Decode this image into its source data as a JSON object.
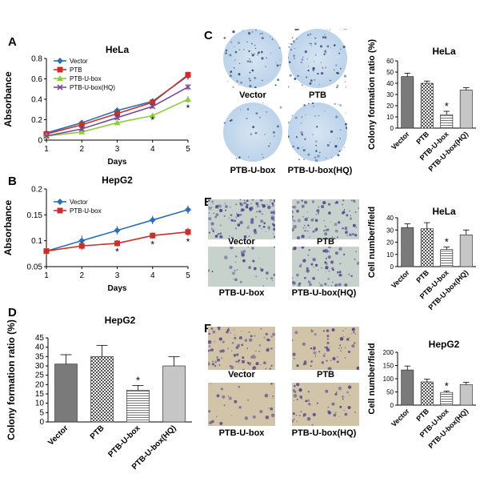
{
  "panels": {
    "a": "A",
    "b": "B",
    "c": "C",
    "d": "D",
    "e": "E",
    "f": "F"
  },
  "colors": {
    "vector": "#2a6fb8",
    "ptb": "#c8302b",
    "ubox": "#8ccf3a",
    "hq": "#7a4a9a",
    "bar_dark": "#7a7a7a",
    "bar_light": "#cfcfcf",
    "plate_blue": "#bcd3ea",
    "field_blue": "#c7d2cc",
    "field_tan": "#d2c4a8",
    "stain": "#4a3f8a"
  },
  "photo_labels": {
    "c": [
      "Vector",
      "PTB",
      "PTB-U-box",
      "PTB-U-box(HQ)"
    ],
    "e": [
      "Vector",
      "PTB",
      "PTB-U-box",
      "PTB-U-box(HQ)"
    ],
    "f": [
      "Vector",
      "PTB",
      "PTB-U-box",
      "PTB-U-box(HQ)"
    ]
  },
  "chart_data": [
    {
      "id": "a",
      "type": "line",
      "title": "HeLa",
      "xlabel": "Days",
      "ylabel": "Absorbance",
      "x": [
        1,
        2,
        3,
        4,
        5
      ],
      "xlim": [
        1,
        5
      ],
      "ylim": [
        0,
        0.8
      ],
      "yticks": [
        0,
        0.2,
        0.4,
        0.6,
        0.8
      ],
      "yticklabels": [
        "0",
        "0.2",
        "0.4",
        "0.6",
        "0.8"
      ],
      "legend": "top-left",
      "series": [
        {
          "name": "Vector",
          "values": [
            0.07,
            0.17,
            0.29,
            0.38,
            0.63
          ],
          "err": [
            0.01,
            0.02,
            0.03,
            0.02,
            0.04
          ],
          "marker": "diamond"
        },
        {
          "name": "PTB",
          "values": [
            0.06,
            0.15,
            0.26,
            0.37,
            0.64
          ],
          "err": [
            0.01,
            0.02,
            0.03,
            0.02,
            0.03
          ],
          "marker": "square"
        },
        {
          "name": "PTB-U-box",
          "values": [
            0.04,
            0.08,
            0.17,
            0.24,
            0.4
          ],
          "err": [
            0.01,
            0.01,
            0.02,
            0.02,
            0.03
          ],
          "marker": "triangle"
        },
        {
          "name": "PTB-U-box(HQ)",
          "values": [
            0.04,
            0.11,
            0.22,
            0.33,
            0.52
          ],
          "err": [
            0.01,
            0.02,
            0.02,
            0.02,
            0.03
          ],
          "marker": "x"
        }
      ],
      "annotations": [
        {
          "x": 4,
          "y": 0.21,
          "text": "*"
        },
        {
          "x": 5,
          "y": 0.33,
          "text": "*"
        }
      ]
    },
    {
      "id": "b",
      "type": "line",
      "title": "HepG2",
      "xlabel": "Days",
      "ylabel": "Absorbance",
      "x": [
        1,
        2,
        3,
        4,
        5
      ],
      "xlim": [
        1,
        5
      ],
      "ylim": [
        0.05,
        0.2
      ],
      "yticks": [
        0.05,
        0.1,
        0.15,
        0.2
      ],
      "yticklabels": [
        "0.05",
        "0.1",
        "0.15",
        "0.2"
      ],
      "legend": "top-left",
      "series": [
        {
          "name": "Vector",
          "values": [
            0.08,
            0.1,
            0.12,
            0.14,
            0.16
          ],
          "err": [
            0.005,
            0.01,
            0.008,
            0.008,
            0.008
          ],
          "marker": "diamond"
        },
        {
          "name": "PTB-U-box",
          "values": [
            0.08,
            0.09,
            0.095,
            0.11,
            0.117
          ],
          "err": [
            0.005,
            0.008,
            0.006,
            0.006,
            0.008
          ],
          "marker": "square"
        }
      ],
      "annotations": [
        {
          "x": 3,
          "y": 0.082,
          "text": "*"
        },
        {
          "x": 4,
          "y": 0.096,
          "text": "*"
        },
        {
          "x": 5,
          "y": 0.101,
          "text": "*"
        }
      ]
    },
    {
      "id": "c",
      "type": "bar",
      "title": "HeLa",
      "ylabel": "Colony formation ratio (%)",
      "categories": [
        "Vector",
        "PTB",
        "PTB-U-box",
        "PTB-U-box(HQ)"
      ],
      "values": [
        46,
        40,
        12,
        34
      ],
      "err": [
        3,
        2,
        3,
        2
      ],
      "ylim": [
        0,
        60
      ],
      "yticks": [
        0,
        10,
        20,
        30,
        40,
        50,
        60
      ],
      "star": 2
    },
    {
      "id": "d",
      "type": "bar",
      "title": "HepG2",
      "ylabel": "Colony formation ratio (%)",
      "categories": [
        "Vector",
        "PTB",
        "PTB-U-box",
        "PTB-U-box(HQ)"
      ],
      "values": [
        31,
        35,
        17,
        30
      ],
      "err": [
        5,
        6,
        2.5,
        5
      ],
      "ylim": [
        0,
        45
      ],
      "yticks": [
        0,
        5,
        10,
        15,
        20,
        25,
        30,
        35,
        40,
        45
      ],
      "star": 2
    },
    {
      "id": "e",
      "type": "bar",
      "title": "HeLa",
      "ylabel": "Cell number/field",
      "categories": [
        "Vector",
        "PTB",
        "PTB-U-box",
        "PTB-U-box(HQ)"
      ],
      "values": [
        32,
        31,
        14,
        26
      ],
      "err": [
        3,
        5,
        2,
        4
      ],
      "ylim": [
        0,
        40
      ],
      "yticks": [
        0,
        10,
        20,
        30,
        40
      ],
      "star": 2
    },
    {
      "id": "f",
      "type": "bar",
      "title": "HepG2",
      "ylabel": "Cell number/field",
      "categories": [
        "Vector",
        "PTB",
        "PTB-U-box",
        "PTB-U-box(HQ)"
      ],
      "values": [
        133,
        88,
        48,
        78
      ],
      "err": [
        15,
        10,
        5,
        8
      ],
      "ylim": [
        0,
        200
      ],
      "yticks": [
        0,
        50,
        100,
        150,
        200
      ],
      "star": 2
    }
  ]
}
